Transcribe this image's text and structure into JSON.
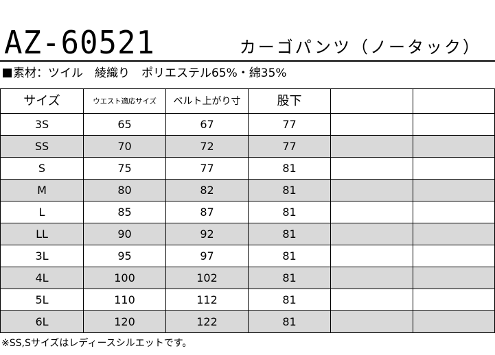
{
  "header": {
    "model": "AZ-60521",
    "product_name": "カーゴパンツ（ノータック）"
  },
  "material": {
    "text": "素材：ツイル　綾織り　ポリエステル65%・綿35%"
  },
  "table": {
    "headers": [
      "サイズ",
      "ウエスト適応サイズ",
      "ベルト上がり寸",
      "股下",
      "",
      ""
    ],
    "rows": [
      {
        "size": "3S",
        "waist": "65",
        "belt": "67",
        "inseam": "77",
        "shaded": false
      },
      {
        "size": "SS",
        "waist": "70",
        "belt": "72",
        "inseam": "77",
        "shaded": true
      },
      {
        "size": "S",
        "waist": "75",
        "belt": "77",
        "inseam": "81",
        "shaded": false
      },
      {
        "size": "M",
        "waist": "80",
        "belt": "82",
        "inseam": "81",
        "shaded": true
      },
      {
        "size": "L",
        "waist": "85",
        "belt": "87",
        "inseam": "81",
        "shaded": false
      },
      {
        "size": "LL",
        "waist": "90",
        "belt": "92",
        "inseam": "81",
        "shaded": true
      },
      {
        "size": "3L",
        "waist": "95",
        "belt": "97",
        "inseam": "81",
        "shaded": false
      },
      {
        "size": "4L",
        "waist": "100",
        "belt": "102",
        "inseam": "81",
        "shaded": true
      },
      {
        "size": "5L",
        "waist": "110",
        "belt": "112",
        "inseam": "81",
        "shaded": false
      },
      {
        "size": "6L",
        "waist": "120",
        "belt": "122",
        "inseam": "81",
        "shaded": true
      }
    ]
  },
  "note": "※SS,Sサイズはレディースシルエットです。",
  "colors": {
    "shade": "#d9d9d9",
    "border": "#000000"
  }
}
